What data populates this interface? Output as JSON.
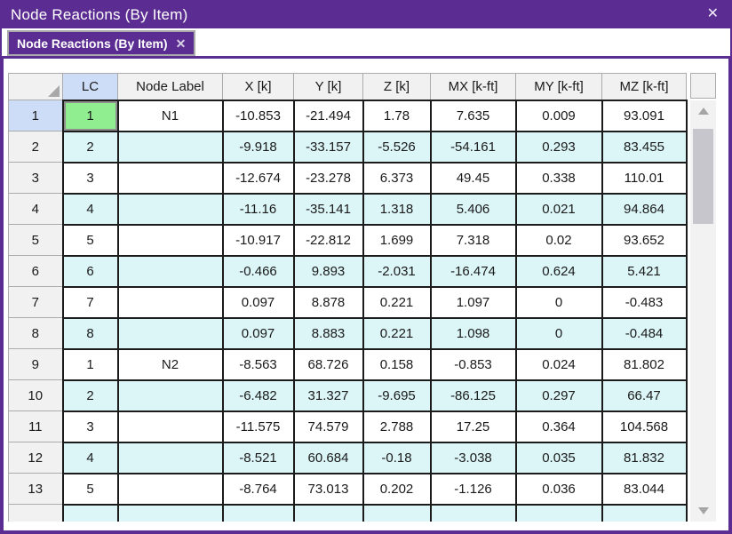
{
  "window": {
    "title": "Node Reactions (By Item)",
    "close_glyph": "✕"
  },
  "tab": {
    "label": "Node Reactions (By Item)",
    "close_glyph": "✕"
  },
  "table": {
    "columns": [
      "",
      "LC",
      "Node Label",
      "X [k]",
      "Y [k]",
      "Z [k]",
      "MX [k-ft]",
      "MY [k-ft]",
      "MZ [k-ft]"
    ],
    "rows": [
      [
        "1",
        "1",
        "N1",
        "-10.853",
        "-21.494",
        "1.78",
        "7.635",
        "0.009",
        "93.091"
      ],
      [
        "2",
        "2",
        "",
        "-9.918",
        "-33.157",
        "-5.526",
        "-54.161",
        "0.293",
        "83.455"
      ],
      [
        "3",
        "3",
        "",
        "-12.674",
        "-23.278",
        "6.373",
        "49.45",
        "0.338",
        "110.01"
      ],
      [
        "4",
        "4",
        "",
        "-11.16",
        "-35.141",
        "1.318",
        "5.406",
        "0.021",
        "94.864"
      ],
      [
        "5",
        "5",
        "",
        "-10.917",
        "-22.812",
        "1.699",
        "7.318",
        "0.02",
        "93.652"
      ],
      [
        "6",
        "6",
        "",
        "-0.466",
        "9.893",
        "-2.031",
        "-16.474",
        "0.624",
        "5.421"
      ],
      [
        "7",
        "7",
        "",
        "0.097",
        "8.878",
        "0.221",
        "1.097",
        "0",
        "-0.483"
      ],
      [
        "8",
        "8",
        "",
        "0.097",
        "8.883",
        "0.221",
        "1.098",
        "0",
        "-0.484"
      ],
      [
        "9",
        "1",
        "N2",
        "-8.563",
        "68.726",
        "0.158",
        "-0.853",
        "0.024",
        "81.802"
      ],
      [
        "10",
        "2",
        "",
        "-6.482",
        "31.327",
        "-9.695",
        "-86.125",
        "0.297",
        "66.47"
      ],
      [
        "11",
        "3",
        "",
        "-11.575",
        "74.579",
        "2.788",
        "17.25",
        "0.364",
        "104.568"
      ],
      [
        "12",
        "4",
        "",
        "-8.521",
        "60.684",
        "-0.18",
        "-3.038",
        "0.035",
        "81.832"
      ],
      [
        "13",
        "5",
        "",
        "-8.764",
        "73.013",
        "0.202",
        "-1.126",
        "0.036",
        "83.044"
      ]
    ],
    "partial_row": [
      "",
      "",
      "",
      "",
      "",
      "",
      "",
      "",
      ""
    ],
    "selected_cell": {
      "row_number": "1",
      "column": "LC",
      "value": "1"
    }
  },
  "colors": {
    "accent_purple": "#5b2c91",
    "selected_cell_green": "#90ee90",
    "alt_row_cyan": "#dcf6f8",
    "active_header_blue": "#cddcf7",
    "grid_line_black": "#1b1b1b"
  },
  "icons": {
    "corner_select": "lower-right-triangle",
    "scroll_up": "triangle-up",
    "scroll_down": "triangle-down"
  }
}
